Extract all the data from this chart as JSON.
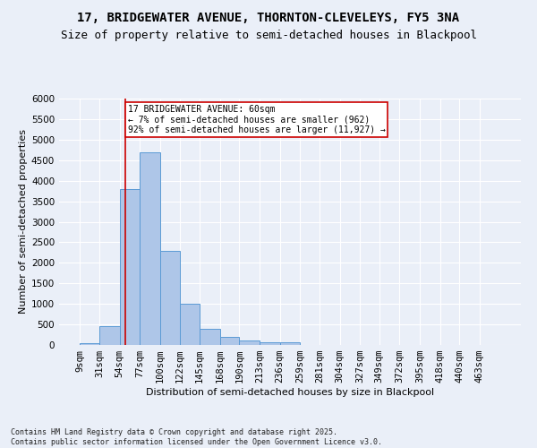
{
  "title_line1": "17, BRIDGEWATER AVENUE, THORNTON-CLEVELEYS, FY5 3NA",
  "title_line2": "Size of property relative to semi-detached houses in Blackpool",
  "xlabel": "Distribution of semi-detached houses by size in Blackpool",
  "ylabel": "Number of semi-detached properties",
  "bin_labels": [
    "9sqm",
    "31sqm",
    "54sqm",
    "77sqm",
    "100sqm",
    "122sqm",
    "145sqm",
    "168sqm",
    "190sqm",
    "213sqm",
    "236sqm",
    "259sqm",
    "281sqm",
    "304sqm",
    "327sqm",
    "349sqm",
    "372sqm",
    "395sqm",
    "418sqm",
    "440sqm",
    "463sqm"
  ],
  "bin_edges": [
    9,
    31,
    54,
    77,
    100,
    122,
    145,
    168,
    190,
    213,
    236,
    259,
    281,
    304,
    327,
    349,
    372,
    395,
    418,
    440,
    463
  ],
  "bar_heights": [
    50,
    450,
    3800,
    4700,
    2300,
    1000,
    400,
    200,
    100,
    70,
    70,
    0,
    0,
    0,
    0,
    0,
    0,
    0,
    0,
    0,
    0
  ],
  "bar_color": "#aec6e8",
  "bar_edge_color": "#5b9bd5",
  "bg_color": "#eaeff8",
  "grid_color": "#ffffff",
  "vline_x": 60,
  "vline_color": "#cc0000",
  "annotation_text": "17 BRIDGEWATER AVENUE: 60sqm\n← 7% of semi-detached houses are smaller (962)\n92% of semi-detached houses are larger (11,927) →",
  "annotation_box_color": "#ffffff",
  "annotation_box_edge": "#cc0000",
  "ylim": [
    0,
    6000
  ],
  "yticks": [
    0,
    500,
    1000,
    1500,
    2000,
    2500,
    3000,
    3500,
    4000,
    4500,
    5000,
    5500,
    6000
  ],
  "footnote": "Contains HM Land Registry data © Crown copyright and database right 2025.\nContains public sector information licensed under the Open Government Licence v3.0.",
  "title_fontsize": 10,
  "subtitle_fontsize": 9,
  "axis_label_fontsize": 8,
  "tick_fontsize": 7.5
}
